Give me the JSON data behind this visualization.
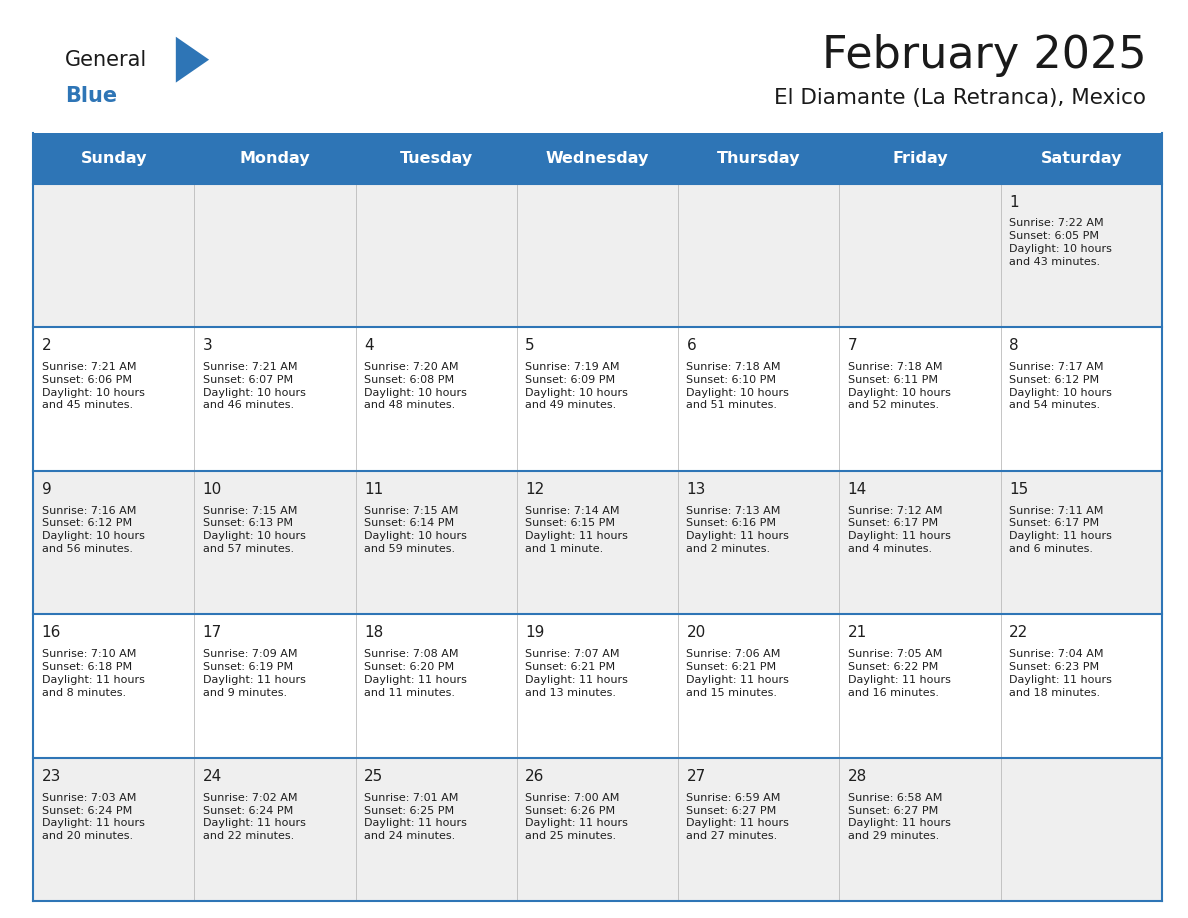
{
  "title": "February 2025",
  "subtitle": "El Diamante (La Retranca), Mexico",
  "header_bg": "#2E75B6",
  "header_text_color": "#FFFFFF",
  "row_bg_odd": "#EFEFEF",
  "row_bg_even": "#FFFFFF",
  "border_color": "#2E75B6",
  "day_number_color": "#1F1F1F",
  "text_color": "#1F1F1F",
  "day_names": [
    "Sunday",
    "Monday",
    "Tuesday",
    "Wednesday",
    "Thursday",
    "Friday",
    "Saturday"
  ],
  "calendar_data": [
    [
      null,
      null,
      null,
      null,
      null,
      null,
      {
        "day": 1,
        "sunrise": "Sunrise: 7:22 AM",
        "sunset": "Sunset: 6:05 PM",
        "daylight": "Daylight: 10 hours\nand 43 minutes."
      }
    ],
    [
      {
        "day": 2,
        "sunrise": "Sunrise: 7:21 AM",
        "sunset": "Sunset: 6:06 PM",
        "daylight": "Daylight: 10 hours\nand 45 minutes."
      },
      {
        "day": 3,
        "sunrise": "Sunrise: 7:21 AM",
        "sunset": "Sunset: 6:07 PM",
        "daylight": "Daylight: 10 hours\nand 46 minutes."
      },
      {
        "day": 4,
        "sunrise": "Sunrise: 7:20 AM",
        "sunset": "Sunset: 6:08 PM",
        "daylight": "Daylight: 10 hours\nand 48 minutes."
      },
      {
        "day": 5,
        "sunrise": "Sunrise: 7:19 AM",
        "sunset": "Sunset: 6:09 PM",
        "daylight": "Daylight: 10 hours\nand 49 minutes."
      },
      {
        "day": 6,
        "sunrise": "Sunrise: 7:18 AM",
        "sunset": "Sunset: 6:10 PM",
        "daylight": "Daylight: 10 hours\nand 51 minutes."
      },
      {
        "day": 7,
        "sunrise": "Sunrise: 7:18 AM",
        "sunset": "Sunset: 6:11 PM",
        "daylight": "Daylight: 10 hours\nand 52 minutes."
      },
      {
        "day": 8,
        "sunrise": "Sunrise: 7:17 AM",
        "sunset": "Sunset: 6:12 PM",
        "daylight": "Daylight: 10 hours\nand 54 minutes."
      }
    ],
    [
      {
        "day": 9,
        "sunrise": "Sunrise: 7:16 AM",
        "sunset": "Sunset: 6:12 PM",
        "daylight": "Daylight: 10 hours\nand 56 minutes."
      },
      {
        "day": 10,
        "sunrise": "Sunrise: 7:15 AM",
        "sunset": "Sunset: 6:13 PM",
        "daylight": "Daylight: 10 hours\nand 57 minutes."
      },
      {
        "day": 11,
        "sunrise": "Sunrise: 7:15 AM",
        "sunset": "Sunset: 6:14 PM",
        "daylight": "Daylight: 10 hours\nand 59 minutes."
      },
      {
        "day": 12,
        "sunrise": "Sunrise: 7:14 AM",
        "sunset": "Sunset: 6:15 PM",
        "daylight": "Daylight: 11 hours\nand 1 minute."
      },
      {
        "day": 13,
        "sunrise": "Sunrise: 7:13 AM",
        "sunset": "Sunset: 6:16 PM",
        "daylight": "Daylight: 11 hours\nand 2 minutes."
      },
      {
        "day": 14,
        "sunrise": "Sunrise: 7:12 AM",
        "sunset": "Sunset: 6:17 PM",
        "daylight": "Daylight: 11 hours\nand 4 minutes."
      },
      {
        "day": 15,
        "sunrise": "Sunrise: 7:11 AM",
        "sunset": "Sunset: 6:17 PM",
        "daylight": "Daylight: 11 hours\nand 6 minutes."
      }
    ],
    [
      {
        "day": 16,
        "sunrise": "Sunrise: 7:10 AM",
        "sunset": "Sunset: 6:18 PM",
        "daylight": "Daylight: 11 hours\nand 8 minutes."
      },
      {
        "day": 17,
        "sunrise": "Sunrise: 7:09 AM",
        "sunset": "Sunset: 6:19 PM",
        "daylight": "Daylight: 11 hours\nand 9 minutes."
      },
      {
        "day": 18,
        "sunrise": "Sunrise: 7:08 AM",
        "sunset": "Sunset: 6:20 PM",
        "daylight": "Daylight: 11 hours\nand 11 minutes."
      },
      {
        "day": 19,
        "sunrise": "Sunrise: 7:07 AM",
        "sunset": "Sunset: 6:21 PM",
        "daylight": "Daylight: 11 hours\nand 13 minutes."
      },
      {
        "day": 20,
        "sunrise": "Sunrise: 7:06 AM",
        "sunset": "Sunset: 6:21 PM",
        "daylight": "Daylight: 11 hours\nand 15 minutes."
      },
      {
        "day": 21,
        "sunrise": "Sunrise: 7:05 AM",
        "sunset": "Sunset: 6:22 PM",
        "daylight": "Daylight: 11 hours\nand 16 minutes."
      },
      {
        "day": 22,
        "sunrise": "Sunrise: 7:04 AM",
        "sunset": "Sunset: 6:23 PM",
        "daylight": "Daylight: 11 hours\nand 18 minutes."
      }
    ],
    [
      {
        "day": 23,
        "sunrise": "Sunrise: 7:03 AM",
        "sunset": "Sunset: 6:24 PM",
        "daylight": "Daylight: 11 hours\nand 20 minutes."
      },
      {
        "day": 24,
        "sunrise": "Sunrise: 7:02 AM",
        "sunset": "Sunset: 6:24 PM",
        "daylight": "Daylight: 11 hours\nand 22 minutes."
      },
      {
        "day": 25,
        "sunrise": "Sunrise: 7:01 AM",
        "sunset": "Sunset: 6:25 PM",
        "daylight": "Daylight: 11 hours\nand 24 minutes."
      },
      {
        "day": 26,
        "sunrise": "Sunrise: 7:00 AM",
        "sunset": "Sunset: 6:26 PM",
        "daylight": "Daylight: 11 hours\nand 25 minutes."
      },
      {
        "day": 27,
        "sunrise": "Sunrise: 6:59 AM",
        "sunset": "Sunset: 6:27 PM",
        "daylight": "Daylight: 11 hours\nand 27 minutes."
      },
      {
        "day": 28,
        "sunrise": "Sunrise: 6:58 AM",
        "sunset": "Sunset: 6:27 PM",
        "daylight": "Daylight: 11 hours\nand 29 minutes."
      },
      null
    ]
  ],
  "logo_general_color": "#1A1A1A",
  "logo_blue_color": "#2E75B6",
  "logo_triangle_color": "#2E75B6"
}
